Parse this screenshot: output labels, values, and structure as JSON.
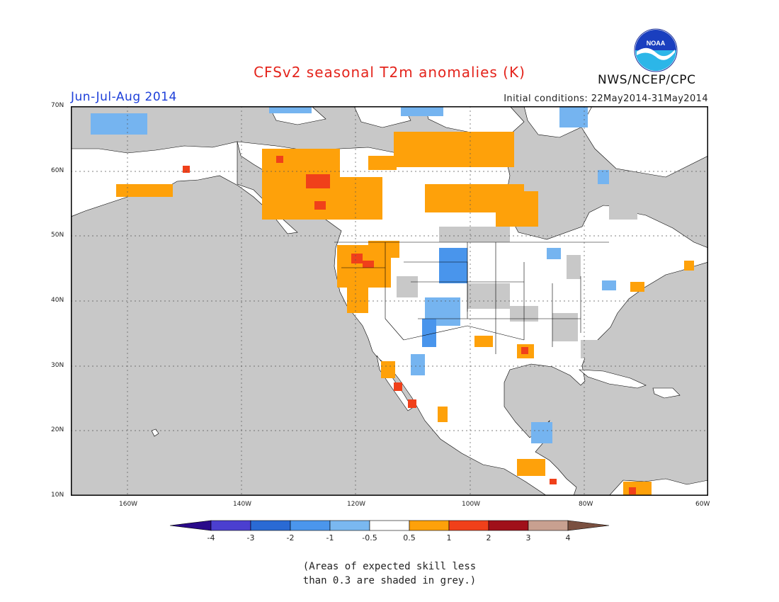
{
  "header": {
    "title": "CFSv2 seasonal T2m anomalies (K)",
    "period": "Jun-Jul-Aug 2014",
    "initial_conditions": "Initial conditions: 22May2014-31May2014",
    "agency": "NWS/NCEP/CPC",
    "logo_label": "NOAA"
  },
  "map": {
    "lon_ticks": [
      "160W",
      "140W",
      "120W",
      "100W",
      "80W",
      "60W"
    ],
    "lat_ticks": [
      "70N",
      "60N",
      "50N",
      "40N",
      "30N",
      "20N",
      "10N"
    ],
    "lon_range": [
      -172,
      -60
    ],
    "lat_range": [
      10,
      70
    ],
    "colors": {
      "ocean_grey": "#c8c8c8",
      "land_white": "#ffffff",
      "warm_0_5_1": "#fea10a",
      "warm_1_2": "#f0401a",
      "cool_neg1_neg0_5": "#75b4f0",
      "cool_neg2_neg1": "#4995ec",
      "border": "#000000"
    }
  },
  "colorbar": {
    "labels": [
      "-4",
      "-3",
      "-2",
      "-1",
      "-0.5",
      "0.5",
      "1",
      "2",
      "3",
      "4"
    ],
    "colors": [
      "#2a0a8a",
      "#4b3fd0",
      "#2a6ad4",
      "#4b96ec",
      "#7ab8f0",
      "#ffffff",
      "#fea10a",
      "#f0401a",
      "#a0101a",
      "#c8a090",
      "#7a5040"
    ]
  },
  "footnote": {
    "line1": "(Areas of expected skill less",
    "line2": "than 0.3 are shaded in grey.)"
  }
}
